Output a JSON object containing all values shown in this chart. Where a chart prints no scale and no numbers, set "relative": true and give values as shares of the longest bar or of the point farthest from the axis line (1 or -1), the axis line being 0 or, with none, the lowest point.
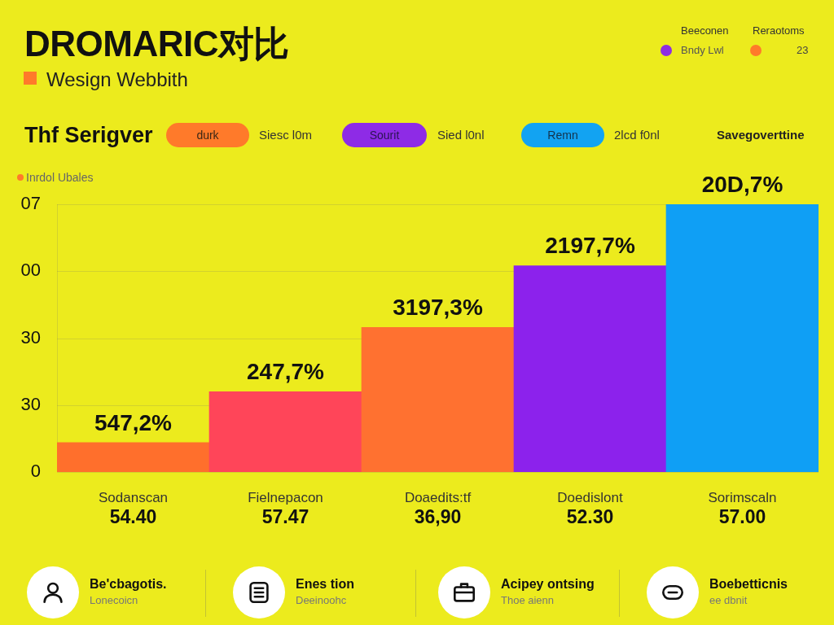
{
  "chart_data": [
    {
      "type": "bar",
      "title": "DROMARIC对比",
      "subtitle": "Wesign Webbith",
      "ylabel": "Inrdol Ubales",
      "categories": [
        "Sodanscan\n54.40",
        "Fielnepacon\n57.47",
        "Doaedits:tf\n36,90",
        "Doedislont\n52.30",
        "Sorimscaln\n57.00"
      ],
      "values": [
        0.11,
        0.3,
        0.54,
        0.77,
        1
      ],
      "colors": [
        "#ff6f2c",
        "#ff4559",
        "#ff7130",
        "#8c22ec",
        "#0f9ff5"
      ],
      "relative": true,
      "grid": "y",
      "annotations": [
        "Beeconen",
        "Reraotoms",
        "Bndy Lwl",
        "23",
        "Thf Serigver",
        "durk",
        "Siesc l0m",
        "Sourit",
        "Sied l0nl",
        "Remn",
        "2lcd f0nl",
        "Savegoverttine",
        "07",
        "00",
        "30",
        "30",
        "0",
        {
          "text": "547,2%",
          "x": "Sodanscan\n54.40",
          "y": 0.11
        },
        {
          "text": "247,7%",
          "x": "Fielnepacon\n57.47",
          "y": 0.3
        },
        {
          "text": "3197,3%",
          "x": "Doaedits:tf\n36,90",
          "y": 0.54
        },
        {
          "text": "2197,7%",
          "x": "Doedislont\n52.30",
          "y": 0.77
        },
        {
          "text": "20D,7%",
          "x": "Sorimscaln\n57.00",
          "y": 1
        }
      ]
    },
    {
      "type": "other",
      "annotations": [
        "Be'cbagotis.",
        "Lonecoicn",
        "Enes tion",
        "Deeinoohc",
        "Acipey ontsing",
        "Thoe aienn",
        "Boebetticnis",
        "ee dbnit"
      ]
    }
  ]
}
